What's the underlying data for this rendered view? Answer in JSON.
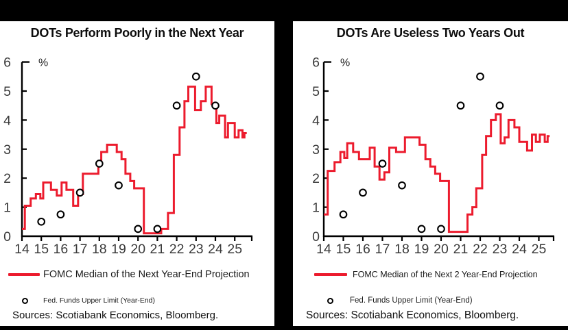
{
  "frame": {
    "bar_color": "#000000",
    "background": "#ffffff"
  },
  "chart_data": [
    {
      "type": "line",
      "chart_kind": "step-line with scatter overlay",
      "title": "DOTs Perform Poorly in the Next Year",
      "ylabel": "%",
      "ylim": [
        0,
        6
      ],
      "xlim": [
        14,
        25.7
      ],
      "grid": false,
      "axis_color": "#000000",
      "line_color": "#ec1b2d",
      "marker_color": "#000000",
      "y_ticks": [
        6,
        5,
        4,
        3,
        2,
        1,
        0
      ],
      "x_ticks": [
        14,
        15,
        16,
        17,
        18,
        19,
        20,
        21,
        22,
        23,
        24,
        25
      ],
      "series": [
        {
          "name": "FOMC Median of the Next Year-End Projection",
          "type": "step",
          "end_x": 25.62,
          "points": [
            [
              14.0,
              0.25
            ],
            [
              14.15,
              1.05
            ],
            [
              14.45,
              1.3
            ],
            [
              14.72,
              1.45
            ],
            [
              14.95,
              1.3
            ],
            [
              15.1,
              1.85
            ],
            [
              15.5,
              1.6
            ],
            [
              15.8,
              1.4
            ],
            [
              16.05,
              1.85
            ],
            [
              16.3,
              1.6
            ],
            [
              16.65,
              1.05
            ],
            [
              16.9,
              1.45
            ],
            [
              17.15,
              2.15
            ],
            [
              17.95,
              2.55
            ],
            [
              18.1,
              2.9
            ],
            [
              18.4,
              3.15
            ],
            [
              18.9,
              2.9
            ],
            [
              19.15,
              2.65
            ],
            [
              19.35,
              2.15
            ],
            [
              19.6,
              1.9
            ],
            [
              19.8,
              1.65
            ],
            [
              20.3,
              0.1
            ],
            [
              21.2,
              0.25
            ],
            [
              21.55,
              0.8
            ],
            [
              21.85,
              2.8
            ],
            [
              22.15,
              3.75
            ],
            [
              22.4,
              4.65
            ],
            [
              22.6,
              5.15
            ],
            [
              22.95,
              4.35
            ],
            [
              23.25,
              4.65
            ],
            [
              23.5,
              5.15
            ],
            [
              23.8,
              4.55
            ],
            [
              24.05,
              3.9
            ],
            [
              24.2,
              4.15
            ],
            [
              24.5,
              3.4
            ],
            [
              24.65,
              3.9
            ],
            [
              25.0,
              3.4
            ],
            [
              25.2,
              3.65
            ],
            [
              25.4,
              3.4
            ],
            [
              25.5,
              3.55
            ]
          ]
        },
        {
          "name": "Fed. Funds Upper Limit (Year-End)",
          "type": "scatter",
          "marker": "open-circle",
          "points": [
            [
              15,
              0.5
            ],
            [
              16,
              0.75
            ],
            [
              17,
              1.5
            ],
            [
              18,
              2.5
            ],
            [
              19,
              1.75
            ],
            [
              20,
              0.25
            ],
            [
              21,
              0.25
            ],
            [
              22,
              4.5
            ],
            [
              23,
              5.5
            ],
            [
              24,
              4.5
            ]
          ]
        }
      ],
      "legend": {
        "line_label": "FOMC Median of the Next Year-End Projection",
        "dot_label": "Fed. Funds Upper Limit (Year-End)"
      },
      "sources": "Sources: Scotiabank Economics, Bloomberg."
    },
    {
      "type": "line",
      "chart_kind": "step-line with scatter overlay",
      "title": "DOTs Are Useless Two Years Out",
      "ylabel": "%",
      "ylim": [
        0,
        6
      ],
      "xlim": [
        14,
        25.7
      ],
      "grid": false,
      "axis_color": "#000000",
      "line_color": "#ec1b2d",
      "marker_color": "#000000",
      "y_ticks": [
        6,
        5,
        4,
        3,
        2,
        1,
        0
      ],
      "x_ticks": [
        14,
        15,
        16,
        17,
        18,
        19,
        20,
        21,
        22,
        23,
        24,
        25
      ],
      "series": [
        {
          "name": "FOMC Median of the Next 2 Year-End Projection",
          "type": "step",
          "end_x": 25.55,
          "points": [
            [
              14.0,
              0.75
            ],
            [
              14.2,
              2.25
            ],
            [
              14.55,
              2.55
            ],
            [
              14.85,
              2.9
            ],
            [
              15.05,
              2.7
            ],
            [
              15.2,
              3.2
            ],
            [
              15.5,
              2.9
            ],
            [
              15.8,
              2.65
            ],
            [
              16.35,
              3.05
            ],
            [
              16.6,
              2.4
            ],
            [
              16.85,
              1.95
            ],
            [
              17.1,
              2.2
            ],
            [
              17.35,
              3.05
            ],
            [
              17.7,
              2.9
            ],
            [
              18.15,
              3.4
            ],
            [
              18.9,
              3.15
            ],
            [
              19.2,
              2.65
            ],
            [
              19.45,
              2.4
            ],
            [
              19.7,
              2.15
            ],
            [
              19.95,
              1.9
            ],
            [
              20.4,
              0.15
            ],
            [
              21.35,
              0.75
            ],
            [
              21.6,
              1.0
            ],
            [
              21.8,
              1.65
            ],
            [
              22.1,
              2.8
            ],
            [
              22.3,
              3.45
            ],
            [
              22.55,
              4.0
            ],
            [
              22.8,
              4.2
            ],
            [
              23.05,
              3.2
            ],
            [
              23.25,
              3.4
            ],
            [
              23.45,
              4.0
            ],
            [
              23.75,
              3.75
            ],
            [
              24.0,
              3.25
            ],
            [
              24.4,
              2.95
            ],
            [
              24.65,
              3.5
            ],
            [
              24.85,
              3.25
            ],
            [
              25.05,
              3.5
            ],
            [
              25.3,
              3.25
            ],
            [
              25.45,
              3.45
            ]
          ]
        },
        {
          "name": "Fed. Funds Upper Limit (Year-End)",
          "type": "scatter",
          "marker": "open-circle",
          "points": [
            [
              15,
              0.75
            ],
            [
              16,
              1.5
            ],
            [
              17,
              2.5
            ],
            [
              18,
              1.75
            ],
            [
              19,
              0.25
            ],
            [
              20,
              0.25
            ],
            [
              21,
              4.5
            ],
            [
              22,
              5.5
            ],
            [
              23,
              4.5
            ]
          ]
        }
      ],
      "legend": {
        "line_label": "FOMC Median of the Next 2 Year-End Projection",
        "dot_label": "Fed. Funds Upper Limit (Year-End)"
      },
      "sources": "Sources: Scotiabank Economics, Bloomberg."
    }
  ]
}
